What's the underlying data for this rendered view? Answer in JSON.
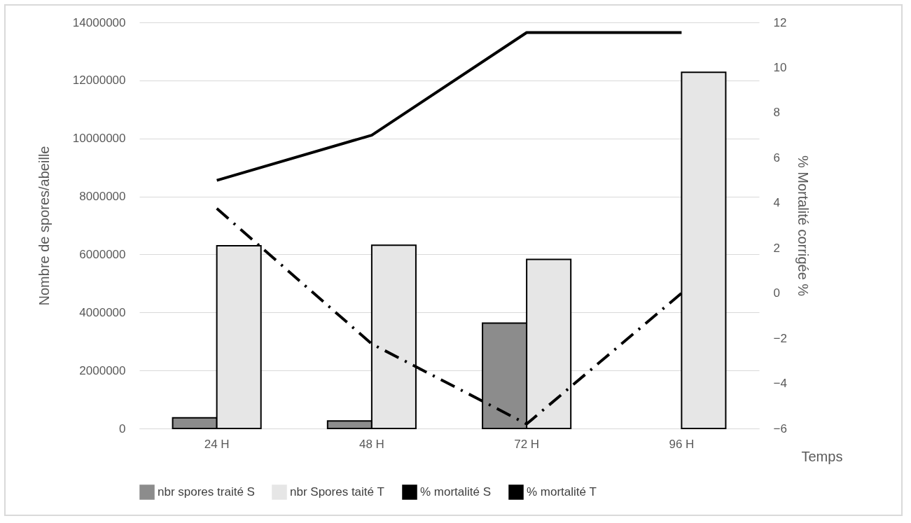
{
  "chart_data": {
    "type": "bar",
    "categories": [
      "24 H",
      "48 H",
      "72 H",
      "96 H"
    ],
    "xlabel": "Temps",
    "ylabel": "Nombre de spores/abeille",
    "y2label": "% Mortalité corrigée %",
    "ylim": [
      0,
      14000000
    ],
    "yticks": [
      0,
      2000000,
      4000000,
      6000000,
      8000000,
      10000000,
      12000000,
      14000000
    ],
    "y2lim": [
      -6,
      12
    ],
    "y2ticks": [
      -6,
      -4,
      -2,
      0,
      2,
      4,
      6,
      8,
      10,
      12
    ],
    "grid": "y",
    "legend": "bottom",
    "series": [
      {
        "name": "nbr spores traité S",
        "color": "#8c8c8c",
        "values": [
          370000,
          260000,
          3630000,
          null
        ]
      },
      {
        "name": "nbr Spores taité T",
        "color": "#e6e6e6",
        "values": [
          6300000,
          6320000,
          5830000,
          12280000
        ]
      },
      {
        "name": "% mortalité S",
        "type": "line",
        "axis": "y2",
        "color": "#000000",
        "line_style": "solid",
        "values": [
          5,
          7,
          11.55,
          11.55
        ]
      },
      {
        "name": "% mortalité T",
        "type": "line",
        "axis": "y2",
        "color": "#000000",
        "line_style": "dashed",
        "values": [
          3.75,
          -2.25,
          -5.8,
          0
        ]
      }
    ]
  }
}
